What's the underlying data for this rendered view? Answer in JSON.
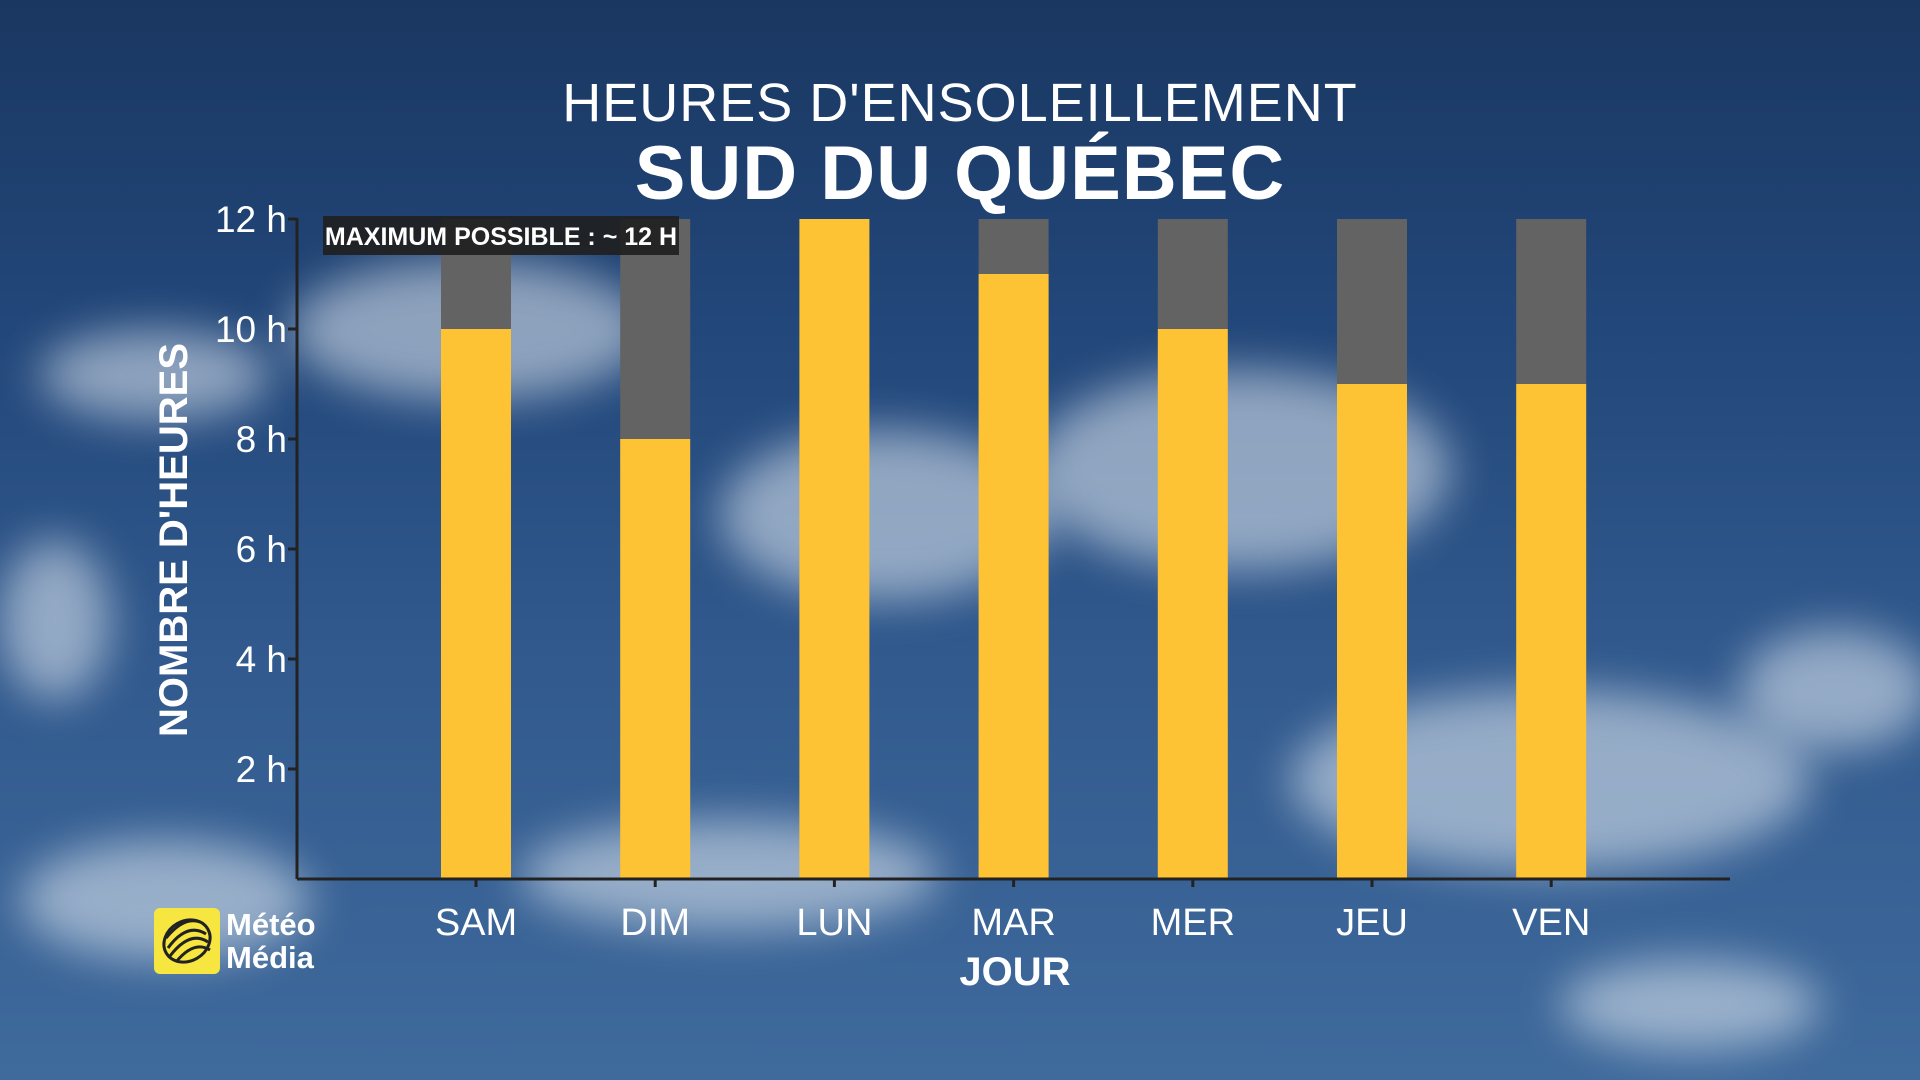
{
  "header": {
    "title": "HEURES D'ENSOLEILLEMENT",
    "subtitle": "SUD DU QUÉBEC"
  },
  "logo": {
    "line1": "Météo",
    "line2": "Média"
  },
  "colors": {
    "sunshine": "#fec334",
    "remaining": "#636363",
    "axis": "#222222"
  },
  "chart_data": {
    "type": "bar",
    "stacked": true,
    "categories": [
      "SAM",
      "DIM",
      "LUN",
      "MAR",
      "MER",
      "JEU",
      "VEN"
    ],
    "series": [
      {
        "values": [
          10,
          8,
          12,
          11,
          10,
          9,
          9
        ]
      },
      {
        "values": [
          2,
          4,
          0,
          1,
          2,
          3,
          3
        ]
      }
    ],
    "xlabel": "JOUR",
    "ylabel": "NOMBRE D'HEURES",
    "ylim": [
      0,
      12
    ],
    "yticks": [
      2,
      4,
      6,
      8,
      10,
      12
    ],
    "ytick_labels": [
      "2 h",
      "4 h",
      "6 h",
      "8 h",
      "10 h",
      "12 h"
    ],
    "annotation": "MAXIMUM POSSIBLE : ~ 12 H",
    "grid": false
  }
}
